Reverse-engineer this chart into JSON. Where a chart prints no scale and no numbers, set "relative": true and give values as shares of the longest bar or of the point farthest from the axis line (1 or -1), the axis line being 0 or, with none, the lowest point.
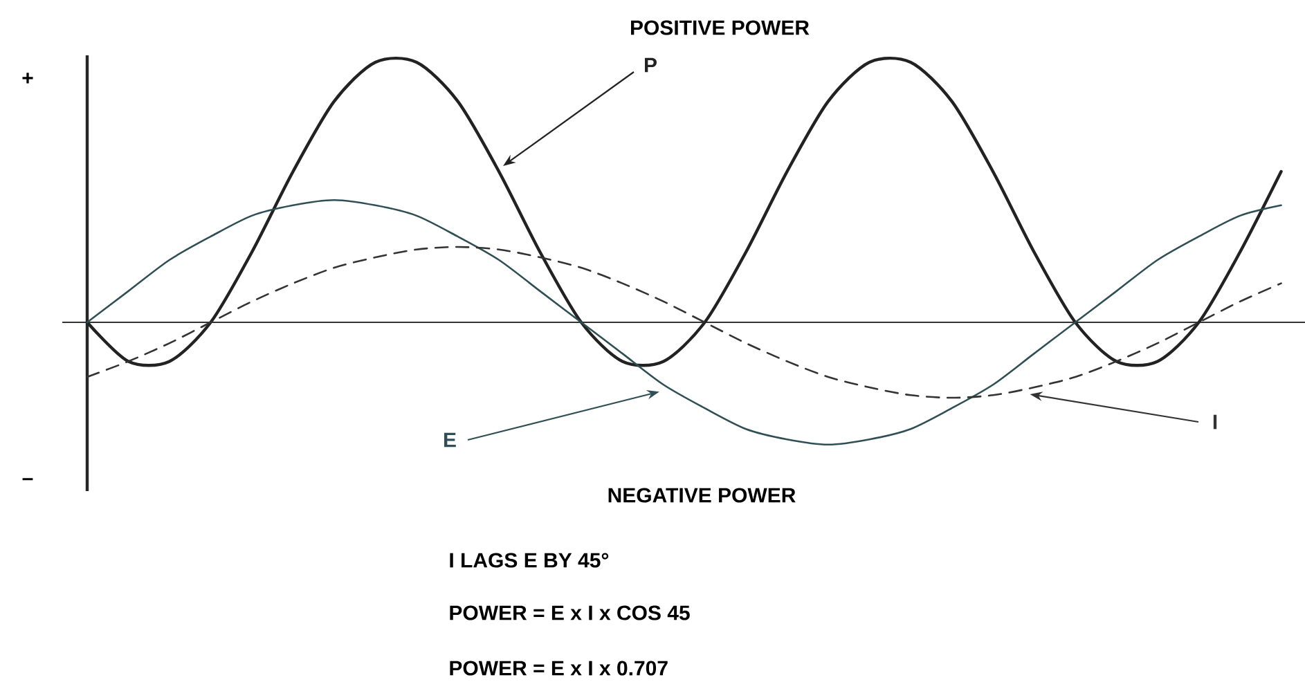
{
  "chart_data": {
    "type": "line",
    "title": "POSITIVE POWER",
    "relative": true,
    "categories": [
      null,
      null,
      null,
      null,
      null,
      null,
      null,
      null,
      null,
      null,
      null,
      null,
      null,
      null,
      null,
      null,
      null,
      null,
      null,
      null,
      null,
      null,
      null,
      null,
      null,
      null,
      null,
      null,
      null,
      null
    ],
    "series": [
      {
        "name": "P",
        "color": "#222222",
        "line_style": "solid",
        "values": [
          0,
          -0.15,
          -0.15,
          0,
          0.27,
          0.58,
          0.85,
          1,
          1,
          0.85,
          0.58,
          0.27,
          0,
          -0.15,
          -0.15,
          0,
          0.27,
          0.58,
          0.85,
          1,
          1,
          0.85,
          0.58,
          0.27,
          0,
          -0.15,
          -0.15,
          0,
          0.27,
          0.58
        ]
      },
      {
        "name": "E",
        "color": "#2f4f55",
        "line_style": "solid",
        "values": [
          0,
          0.12,
          0.24,
          0.33,
          0.41,
          0.45,
          0.47,
          0.45,
          0.41,
          0.33,
          0.24,
          0.12,
          0,
          -0.12,
          -0.24,
          -0.33,
          -0.41,
          -0.45,
          -0.47,
          -0.45,
          -0.41,
          -0.33,
          -0.24,
          -0.12,
          0,
          0.12,
          0.24,
          0.33,
          0.41,
          0.45
        ]
      },
      {
        "name": "I",
        "color": "#333333",
        "line_style": "dashed",
        "values": [
          -0.21,
          -0.15,
          -0.08,
          0,
          0.08,
          0.15,
          0.21,
          0.25,
          0.28,
          0.29,
          0.28,
          0.25,
          0.21,
          0.15,
          0.08,
          0,
          -0.08,
          -0.15,
          -0.21,
          -0.25,
          -0.28,
          -0.29,
          -0.28,
          -0.25,
          -0.21,
          -0.15,
          -0.08,
          0,
          0.08,
          0.15
        ]
      }
    ],
    "annotations": [
      "+",
      "–",
      "NEGATIVE POWER",
      "I LAGS E BY 45°",
      "POWER = E x I x COS 45",
      "POWER = E x I x 0.707"
    ]
  }
}
